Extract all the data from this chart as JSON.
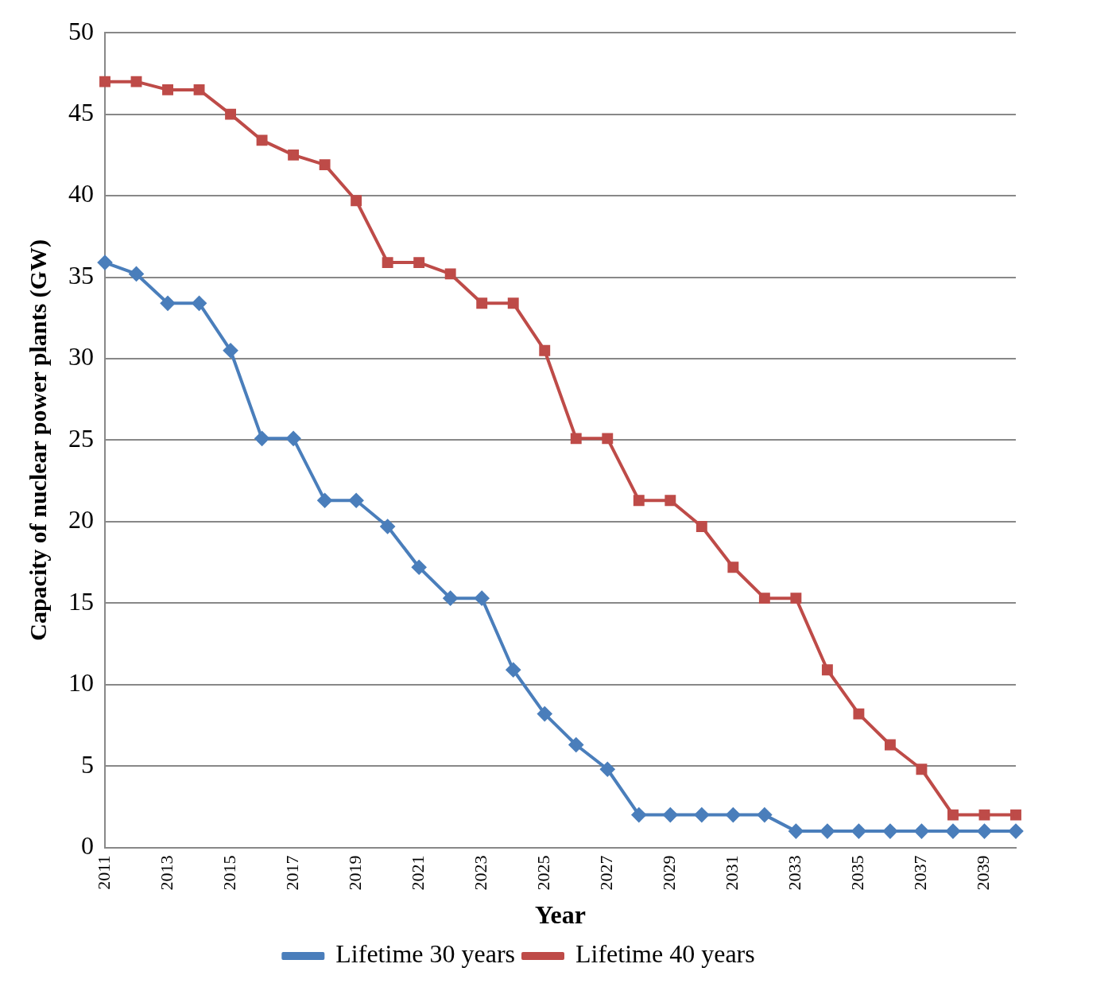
{
  "chart_data": {
    "type": "line",
    "xlabel": "Year",
    "ylabel": "Capacity of nuclear power plants (GW)",
    "categories": [
      "2011",
      null,
      "2013",
      null,
      "2015",
      null,
      "2017",
      null,
      "2019",
      null,
      "2021",
      null,
      "2023",
      null,
      "2025",
      null,
      "2027",
      null,
      "2029",
      null,
      "2031",
      null,
      "2033",
      null,
      "2035",
      null,
      "2037",
      null,
      "2039",
      null
    ],
    "series": [
      {
        "name": "Lifetime 30 years",
        "color": "#4a7ebb",
        "marker": "diamond",
        "values": [
          35.9,
          35.2,
          33.4,
          33.4,
          30.5,
          25.1,
          25.1,
          21.3,
          21.3,
          19.7,
          17.2,
          15.3,
          15.3,
          10.9,
          8.2,
          6.3,
          4.8,
          2.0,
          2.0,
          2.0,
          2.0,
          2.0,
          1.0,
          1.0,
          1.0,
          1.0,
          1.0,
          1.0,
          1.0,
          1.0
        ]
      },
      {
        "name": "Lifetime 40 years",
        "color": "#be4b48",
        "marker": "square",
        "values": [
          47.0,
          47.0,
          46.5,
          46.5,
          45.0,
          43.4,
          42.5,
          41.9,
          39.7,
          35.9,
          35.9,
          35.2,
          33.4,
          33.4,
          30.5,
          25.1,
          25.1,
          21.3,
          21.3,
          19.7,
          17.2,
          15.3,
          15.3,
          10.9,
          8.2,
          6.3,
          4.8,
          2.0,
          2.0,
          2.0
        ]
      }
    ],
    "ylim": [
      0,
      50
    ],
    "yticks": [
      0,
      5,
      10,
      15,
      20,
      25,
      30,
      35,
      40,
      45,
      50
    ],
    "grid": "y",
    "legend": "bottom",
    "line_style": "solid"
  }
}
